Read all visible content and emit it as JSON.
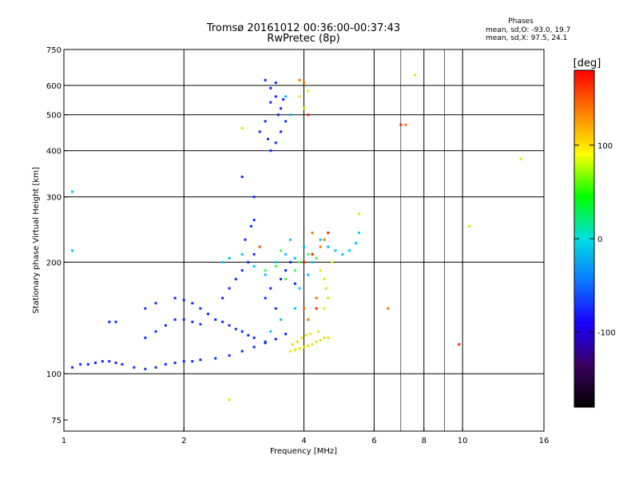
{
  "header": {
    "title_line1": "Tromsø 20161012 00:36:00-00:37:43",
    "title_line2": "RwPretec (8p)"
  },
  "stats": {
    "heading": "Phases",
    "line1": "mean, sd,O: -93.0, 19.7",
    "line2": "mean, sd,X:  97.5, 24.1"
  },
  "chart_data": {
    "type": "scatter",
    "xlabel": "Frequency [MHz]",
    "ylabel": "Stationary phase Virtual Height [km]",
    "x_scale": "log",
    "y_scale": "log",
    "xlim": [
      1,
      16
    ],
    "ylim": [
      70,
      750
    ],
    "x_ticks": [
      1,
      2,
      4,
      6,
      8,
      10,
      16
    ],
    "x_tick_labels": [
      "1",
      "2",
      "4",
      "6",
      "8",
      "10",
      "16"
    ],
    "y_ticks": [
      75,
      100,
      200,
      300,
      400,
      500,
      600,
      750
    ],
    "y_tick_labels": [
      "75",
      "100",
      "200",
      "300",
      "400",
      "500",
      "600",
      "750"
    ],
    "x_grid_lines": [
      2,
      4,
      6,
      8,
      10
    ],
    "y_grid_lines": [
      100,
      200,
      300,
      400,
      500,
      600
    ],
    "minor_x_lines": [
      7,
      9
    ],
    "grid": true,
    "colorbar": {
      "label": "[deg]",
      "min": -180,
      "max": 180,
      "ticks": [
        -100,
        0,
        100
      ],
      "tick_labels": [
        "-100",
        "0",
        "100"
      ],
      "colors": [
        "#000000",
        "#3a0060",
        "#1a00ff",
        "#0a78ff",
        "#00e0e0",
        "#00ff00",
        "#ffff00",
        "#ff8000",
        "#ff0000"
      ]
    },
    "series": [
      {
        "color_value": -100,
        "color": "#1428ff",
        "points": [
          [
            1.05,
            104
          ],
          [
            1.1,
            106
          ],
          [
            1.15,
            106
          ],
          [
            1.2,
            107
          ],
          [
            1.25,
            108
          ],
          [
            1.3,
            108
          ],
          [
            1.35,
            107
          ],
          [
            1.4,
            106
          ],
          [
            1.5,
            104
          ],
          [
            1.6,
            103
          ],
          [
            1.7,
            104
          ],
          [
            1.8,
            106
          ],
          [
            1.9,
            107
          ],
          [
            2.0,
            108
          ],
          [
            2.1,
            108
          ],
          [
            2.2,
            109
          ],
          [
            2.4,
            110
          ],
          [
            2.6,
            112
          ],
          [
            2.8,
            115
          ],
          [
            3.0,
            118
          ],
          [
            3.2,
            121
          ],
          [
            3.4,
            124
          ],
          [
            3.6,
            128
          ],
          [
            1.6,
            125
          ],
          [
            1.7,
            130
          ],
          [
            1.8,
            135
          ],
          [
            1.9,
            140
          ],
          [
            2.0,
            140
          ],
          [
            2.1,
            138
          ],
          [
            2.2,
            136
          ],
          [
            1.9,
            160
          ],
          [
            2.0,
            158
          ],
          [
            2.1,
            155
          ],
          [
            2.2,
            150
          ],
          [
            1.7,
            155
          ],
          [
            1.6,
            150
          ],
          [
            2.3,
            145
          ],
          [
            2.4,
            140
          ],
          [
            2.5,
            138
          ],
          [
            2.6,
            135
          ],
          [
            2.7,
            132
          ],
          [
            2.8,
            130
          ],
          [
            2.9,
            127
          ],
          [
            3.0,
            125
          ],
          [
            3.2,
            122
          ],
          [
            1.3,
            138
          ],
          [
            1.35,
            138
          ],
          [
            2.5,
            160
          ],
          [
            2.6,
            170
          ],
          [
            2.7,
            180
          ],
          [
            2.8,
            190
          ],
          [
            2.9,
            200
          ],
          [
            3.0,
            210
          ],
          [
            3.1,
            220
          ],
          [
            2.95,
            250
          ],
          [
            3.0,
            260
          ],
          [
            2.85,
            230
          ],
          [
            3.2,
            160
          ],
          [
            3.3,
            170
          ],
          [
            3.4,
            150
          ],
          [
            3.5,
            180
          ],
          [
            3.6,
            190
          ],
          [
            3.7,
            200
          ],
          [
            3.8,
            175
          ],
          [
            3.3,
            400
          ],
          [
            3.4,
            420
          ],
          [
            3.5,
            450
          ],
          [
            3.6,
            480
          ],
          [
            3.5,
            520
          ],
          [
            3.4,
            560
          ],
          [
            3.3,
            590
          ],
          [
            3.2,
            620
          ],
          [
            3.4,
            610
          ],
          [
            3.3,
            540
          ],
          [
            3.2,
            480
          ],
          [
            3.1,
            450
          ],
          [
            3.25,
            430
          ],
          [
            3.45,
            500
          ],
          [
            3.55,
            550
          ],
          [
            2.8,
            340
          ],
          [
            3.0,
            300
          ]
        ]
      },
      {
        "color_value": -40,
        "color": "#00c8ff",
        "points": [
          [
            2.5,
            200
          ],
          [
            2.6,
            205
          ],
          [
            2.8,
            210
          ],
          [
            3.0,
            195
          ],
          [
            3.2,
            185
          ],
          [
            3.4,
            200
          ],
          [
            3.6,
            210
          ],
          [
            3.8,
            205
          ],
          [
            4.0,
            220
          ],
          [
            4.2,
            200
          ],
          [
            3.9,
            170
          ],
          [
            4.1,
            185
          ],
          [
            3.7,
            230
          ],
          [
            4.4,
            230
          ],
          [
            4.6,
            220
          ],
          [
            4.8,
            215
          ],
          [
            5.0,
            210
          ],
          [
            5.2,
            215
          ],
          [
            5.4,
            225
          ],
          [
            5.5,
            240
          ],
          [
            1.05,
            310
          ],
          [
            1.05,
            215
          ],
          [
            3.6,
            560
          ],
          [
            3.7,
            500
          ],
          [
            3.5,
            140
          ],
          [
            3.3,
            130
          ],
          [
            3.8,
            150
          ]
        ]
      },
      {
        "color_value": 20,
        "color": "#3cff50",
        "points": [
          [
            3.2,
            190
          ],
          [
            3.4,
            195
          ],
          [
            3.6,
            180
          ],
          [
            3.8,
            190
          ],
          [
            3.5,
            215
          ],
          [
            3.9,
            200
          ],
          [
            4.1,
            210
          ],
          [
            4.3,
            205
          ]
        ]
      },
      {
        "color_value": 100,
        "color": "#e8e800",
        "points": [
          [
            3.7,
            115
          ],
          [
            3.8,
            116
          ],
          [
            3.9,
            117
          ],
          [
            4.0,
            118
          ],
          [
            4.1,
            119
          ],
          [
            4.2,
            120
          ],
          [
            4.3,
            122
          ],
          [
            4.4,
            123
          ],
          [
            4.5,
            125
          ],
          [
            4.6,
            125
          ],
          [
            3.75,
            120
          ],
          [
            3.85,
            122
          ],
          [
            3.95,
            125
          ],
          [
            4.05,
            127
          ],
          [
            4.15,
            128
          ],
          [
            4.35,
            130
          ],
          [
            4.5,
            150
          ],
          [
            4.6,
            160
          ],
          [
            4.55,
            170
          ],
          [
            4.5,
            180
          ],
          [
            4.4,
            190
          ],
          [
            4.7,
            200
          ],
          [
            2.8,
            460
          ],
          [
            3.9,
            560
          ],
          [
            4.0,
            520
          ],
          [
            4.1,
            580
          ],
          [
            2.6,
            85
          ],
          [
            7.6,
            640
          ],
          [
            14,
            380
          ],
          [
            10.4,
            250
          ],
          [
            5.5,
            270
          ]
        ]
      },
      {
        "color_value": 150,
        "color": "#ff7800",
        "points": [
          [
            3.9,
            620
          ],
          [
            4.0,
            610
          ],
          [
            4.2,
            240
          ],
          [
            4.4,
            220
          ],
          [
            4.5,
            230
          ],
          [
            4.3,
            160
          ],
          [
            4.0,
            150
          ],
          [
            4.1,
            140
          ],
          [
            7.2,
            470
          ],
          [
            6.5,
            150
          ],
          [
            3.1,
            220
          ]
        ]
      },
      {
        "color_value": 175,
        "color": "#ff1e00",
        "points": [
          [
            4.1,
            500
          ],
          [
            4.0,
            200
          ],
          [
            4.2,
            210
          ],
          [
            4.3,
            150
          ],
          [
            9.8,
            120
          ],
          [
            7.0,
            470
          ],
          [
            4.6,
            240
          ]
        ]
      }
    ]
  }
}
